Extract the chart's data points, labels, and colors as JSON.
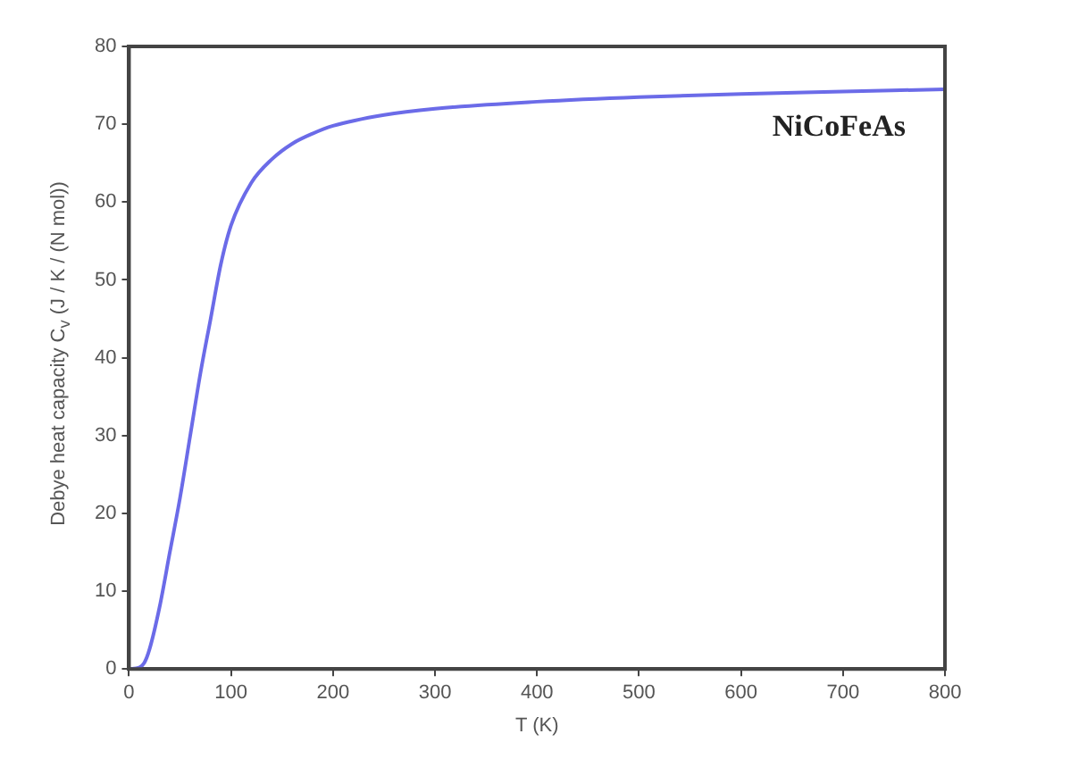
{
  "chart_data": {
    "type": "line",
    "xlabel": "T (K)",
    "ylabel": "Debye heat capacity C$_{v}$ (J / K / (N mol))",
    "annotations": [
      "NiCoFeAs"
    ],
    "xlim": [
      0,
      800
    ],
    "xticks": [
      0,
      100,
      200,
      300,
      400,
      500,
      600,
      700,
      800
    ],
    "ylim": [
      0,
      80
    ],
    "yticks": [
      0,
      10,
      20,
      30,
      40,
      50,
      60,
      70,
      80
    ],
    "grid": false,
    "legend": false,
    "marker": "none",
    "line_style": "solid",
    "series": [
      {
        "color": "#6b6be8",
        "x": [
          0,
          10,
          15,
          20,
          30,
          40,
          50,
          60,
          70,
          80,
          90,
          100,
          120,
          140,
          160,
          180,
          200,
          250,
          300,
          400,
          500,
          600,
          700,
          800
        ],
        "values": [
          0,
          0.2,
          0.8,
          2.5,
          8,
          15,
          22,
          30,
          38,
          45,
          52,
          57,
          62.5,
          65.5,
          67.5,
          68.8,
          69.8,
          71.2,
          72,
          72.9,
          73.5,
          73.9,
          74.2,
          74.5
        ]
      }
    ]
  }
}
